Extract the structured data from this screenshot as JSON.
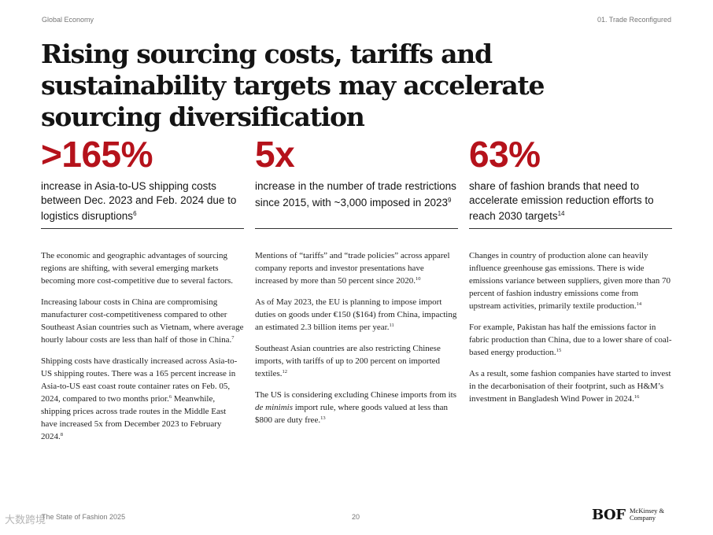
{
  "header": {
    "section": "Global Economy",
    "chapter": "01. Trade Reconfigured"
  },
  "title": "Rising sourcing costs, tariffs and sustainability targets may accelerate sourcing diversification",
  "columns": [
    {
      "stat": ">165%",
      "stat_text": "increase in Asia-to-US shipping costs between Dec. 2023 and Feb. 2024 due to logistics disruptions",
      "stat_ref": "6",
      "paragraphs": [
        [
          {
            "t": "The economic and geographic advantages of sourcing regions are shifting, with several emerging markets becoming more cost-competitive due to several factors."
          }
        ],
        [
          {
            "t": "Increasing labour costs in China are compromising manufacturer cost-competitiveness compared to other Southeast Asian countries such as Vietnam, where average hourly labour costs are less than half of those in China."
          },
          {
            "sup": "7"
          }
        ],
        [
          {
            "t": "Shipping costs have drastically increased across Asia-to-US shipping routes. There was a 165 percent increase in Asia-to-US east coast route container rates on Feb. 05, 2024, compared to two months prior."
          },
          {
            "sup": "6"
          },
          {
            "t": " Meanwhile, shipping prices across trade routes in the Middle East have increased 5x from December 2023 to February 2024."
          },
          {
            "sup": "8"
          }
        ]
      ]
    },
    {
      "stat": "5x",
      "stat_text": "increase in the number of trade restrictions since 2015, with ~3,000 imposed in 2023",
      "stat_ref": "9",
      "paragraphs": [
        [
          {
            "t": "Mentions of “tariffs” and “trade policies” across apparel company reports and investor presentations have increased by more than 50 percent since 2020."
          },
          {
            "sup": "10"
          }
        ],
        [
          {
            "t": "As of May 2023, the EU is planning to impose import duties on goods under €150 ($164) from China, impacting an estimated 2.3 billion items per year."
          },
          {
            "sup": "11"
          }
        ],
        [
          {
            "t": "Southeast Asian countries are also restricting Chinese imports, with tariffs of up to 200 percent on imported textiles."
          },
          {
            "sup": "12"
          }
        ],
        [
          {
            "t": "The US is considering excluding Chinese imports from its "
          },
          {
            "i": "de minimis"
          },
          {
            "t": " import rule, where goods valued at less than $800 are duty free."
          },
          {
            "sup": "13"
          }
        ]
      ]
    },
    {
      "stat": "63%",
      "stat_text": "share of fashion brands that need to accelerate emission reduction efforts to reach 2030 targets",
      "stat_ref": "14",
      "paragraphs": [
        [
          {
            "t": "Changes in country of production alone can heavily influence greenhouse gas emissions. There is wide emissions variance between suppliers, given more than 70 percent of fashion industry emissions come from upstream activities, primarily textile production."
          },
          {
            "sup": "14"
          }
        ],
        [
          {
            "t": "For example, Pakistan has half the emissions factor in fabric production than China, due to a lower share of coal-based energy production."
          },
          {
            "sup": "15"
          }
        ],
        [
          {
            "t": "As a result, some fashion companies have started to invest in the decarbonisation of their footprint, such as H&M’s investment in Bangladesh Wind Power in 2024."
          },
          {
            "sup": "16"
          }
        ]
      ]
    }
  ],
  "footer": {
    "publication": "The State of Fashion 2025",
    "page": "20",
    "logo_bof": "BOF",
    "logo_mckinsey": "McKinsey & Company",
    "watermark": "大数跨境"
  }
}
